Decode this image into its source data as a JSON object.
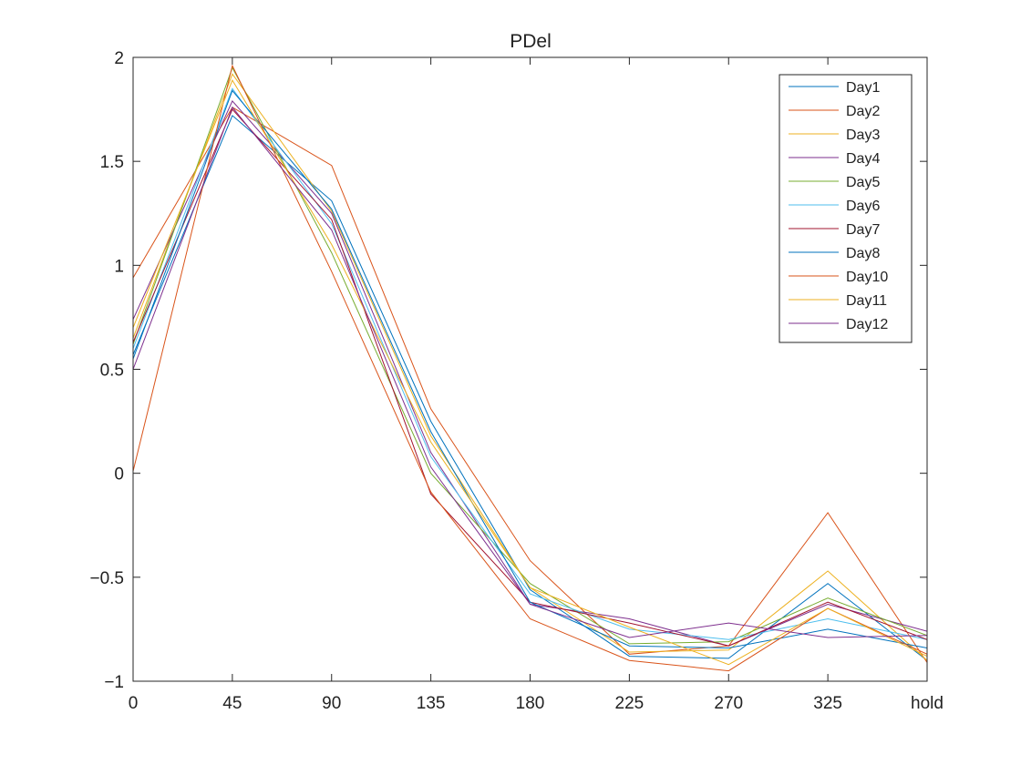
{
  "chart_data": {
    "type": "line",
    "title": "PDel",
    "xlabel": "",
    "ylabel": "",
    "categories": [
      "0",
      "45",
      "90",
      "135",
      "180",
      "225",
      "270",
      "325",
      "hold"
    ],
    "ylim": [
      -1,
      2
    ],
    "yticks": [
      -1,
      -0.5,
      0,
      0.5,
      1,
      1.5,
      2
    ],
    "ytick_labels": [
      "−1",
      "−0.5",
      "0",
      "0.5",
      "1",
      "1.5",
      "2"
    ],
    "grid": false,
    "legend_position": "top-right",
    "series": [
      {
        "name": "Day1",
        "color": "#0072BD",
        "values": [
          0.57,
          1.72,
          1.31,
          0.25,
          -0.56,
          -0.88,
          -0.89,
          -0.53,
          -0.9
        ]
      },
      {
        "name": "Day2",
        "color": "#D95319",
        "values": [
          0.94,
          1.76,
          1.48,
          0.31,
          -0.42,
          -0.87,
          -0.83,
          -0.19,
          -0.91
        ]
      },
      {
        "name": "Day3",
        "color": "#EDB120",
        "values": [
          0.65,
          1.92,
          1.26,
          0.18,
          -0.55,
          -0.86,
          -0.85,
          -0.47,
          -0.9
        ]
      },
      {
        "name": "Day4",
        "color": "#7E2F8E",
        "values": [
          0.74,
          1.79,
          1.25,
          0.1,
          -0.63,
          -0.7,
          -0.83,
          -0.63,
          -0.76
        ]
      },
      {
        "name": "Day5",
        "color": "#77AC30",
        "values": [
          0.62,
          1.95,
          1.06,
          0.0,
          -0.53,
          -0.82,
          -0.81,
          -0.6,
          -0.78
        ]
      },
      {
        "name": "Day6",
        "color": "#4DBEEE",
        "values": [
          0.6,
          1.85,
          1.2,
          0.08,
          -0.58,
          -0.75,
          -0.8,
          -0.7,
          -0.8
        ]
      },
      {
        "name": "Day7",
        "color": "#A2142F",
        "values": [
          0.63,
          1.75,
          1.22,
          -0.1,
          -0.62,
          -0.72,
          -0.83,
          -0.62,
          -0.8
        ]
      },
      {
        "name": "Day8",
        "color": "#0072BD",
        "values": [
          0.55,
          1.84,
          1.27,
          0.2,
          -0.62,
          -0.83,
          -0.84,
          -0.75,
          -0.84
        ]
      },
      {
        "name": "Day10",
        "color": "#D95319",
        "values": [
          0.01,
          1.96,
          0.97,
          -0.09,
          -0.7,
          -0.9,
          -0.95,
          -0.65,
          -0.87
        ]
      },
      {
        "name": "Day11",
        "color": "#EDB120",
        "values": [
          0.7,
          1.89,
          1.1,
          0.15,
          -0.55,
          -0.74,
          -0.92,
          -0.65,
          -0.88
        ]
      },
      {
        "name": "Day12",
        "color": "#7E2F8E",
        "values": [
          0.5,
          1.76,
          1.17,
          0.03,
          -0.63,
          -0.79,
          -0.72,
          -0.79,
          -0.78
        ]
      }
    ]
  }
}
